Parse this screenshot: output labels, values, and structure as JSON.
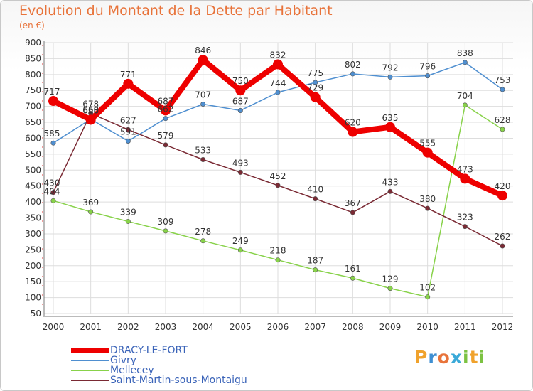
{
  "title": "Evolution du Montant de la Dette par Habitant",
  "unit": "(en €)",
  "logo": {
    "letters": [
      "P",
      "r",
      "o",
      "x",
      "i",
      "t",
      "i"
    ],
    "colors": [
      "#f0a22c",
      "#3f8fd2",
      "#e8733a",
      "#3aa9d8",
      "#7cc242",
      "#f0a22c",
      "#7cc242"
    ]
  },
  "chart_data": {
    "type": "line",
    "title": "Evolution du Montant de la Dette par Habitant",
    "subtitle": "(en €)",
    "xlabel": "",
    "ylabel": "",
    "x": [
      "2000",
      "2001",
      "2002",
      "2003",
      "2004",
      "2005",
      "2006",
      "2007",
      "2008",
      "2009",
      "2010",
      "2011",
      "2012"
    ],
    "yticks": [
      "900",
      "850",
      "800",
      "750",
      "700",
      "650",
      "600",
      "550",
      "500",
      "450",
      "400",
      "350",
      "300",
      "250",
      "200",
      "150",
      "100",
      "50"
    ],
    "ylim": [
      50,
      900
    ],
    "grid": true,
    "legend_position": "bottom-left",
    "series": [
      {
        "name": "DRACY-LE-FORT",
        "color": "#ee0000",
        "values": [
          717,
          658,
          771,
          687,
          846,
          750,
          832,
          729,
          620,
          635,
          555,
          473,
          420
        ],
        "labels": [
          "717",
          "658",
          "771",
          "687",
          "846",
          "750",
          "832",
          "729",
          "620",
          "635",
          "555",
          "473",
          "420"
        ]
      },
      {
        "name": "Givry",
        "color": "#4f8fd0",
        "values": [
          585,
          660,
          591,
          662,
          707,
          687,
          744,
          775,
          802,
          792,
          796,
          838,
          753
        ],
        "labels": [
          "585",
          "660",
          "591",
          "662",
          "707",
          "687",
          "744",
          "775",
          "802",
          "792",
          "796",
          "838",
          "753"
        ]
      },
      {
        "name": "Mellecey",
        "color": "#88d24a",
        "values": [
          404,
          369,
          339,
          309,
          278,
          249,
          218,
          187,
          161,
          129,
          102,
          704,
          628
        ],
        "labels": [
          "404",
          "369",
          "339",
          "309",
          "278",
          "249",
          "218",
          "187",
          "161",
          "129",
          "102",
          "704",
          "628"
        ]
      },
      {
        "name": "Saint-Martin-sous-Montaigu",
        "color": "#7a2a34",
        "values": [
          430,
          678,
          627,
          579,
          533,
          493,
          452,
          410,
          367,
          433,
          380,
          323,
          262
        ],
        "labels": [
          "430",
          "678",
          "627",
          "579",
          "533",
          "493",
          "452",
          "410",
          "367",
          "433",
          "380",
          "323",
          "262"
        ]
      }
    ]
  }
}
